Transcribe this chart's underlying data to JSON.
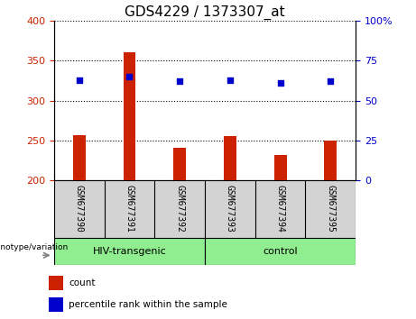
{
  "title": "GDS4229 / 1373307_at",
  "categories": [
    "GSM677390",
    "GSM677391",
    "GSM677392",
    "GSM677393",
    "GSM677394",
    "GSM677395"
  ],
  "bar_values": [
    257,
    360,
    241,
    255,
    232,
    250
  ],
  "bar_baseline": 200,
  "percentile_values": [
    63,
    65,
    62,
    63,
    61,
    62
  ],
  "bar_color": "#cc2200",
  "dot_color": "#0000cc",
  "ylim_left": [
    200,
    400
  ],
  "ylim_right": [
    0,
    100
  ],
  "yticks_left": [
    200,
    250,
    300,
    350,
    400
  ],
  "yticks_right": [
    0,
    25,
    50,
    75,
    100
  ],
  "ytick_labels_right": [
    "0",
    "25",
    "50",
    "75",
    "100%"
  ],
  "group1_label": "HIV-transgenic",
  "group2_label": "control",
  "group1_indices": [
    0,
    1,
    2
  ],
  "group2_indices": [
    3,
    4,
    5
  ],
  "group_color": "#90EE90",
  "label_bg": "#d3d3d3",
  "genotype_label": "genotype/variation",
  "legend_count_label": "count",
  "legend_percentile_label": "percentile rank within the sample",
  "left_tick_color": "#cc2200",
  "right_tick_color": "#0000cc",
  "plot_bg": "#ffffff",
  "title_fontsize": 11,
  "tick_fontsize": 8,
  "bar_width": 0.25
}
